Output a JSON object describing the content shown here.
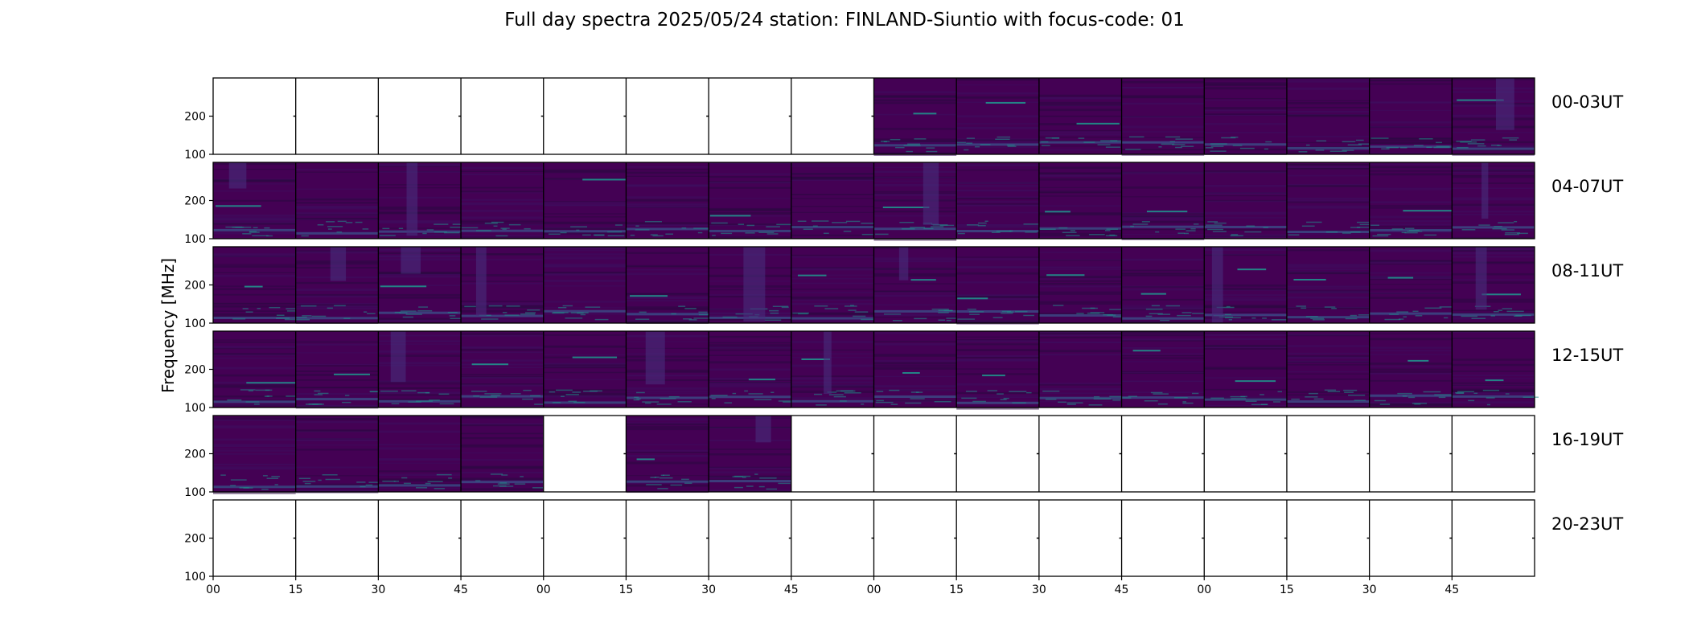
{
  "title": "Full day spectra 2025/05/24 station: FINLAND-Siuntio with focus-code: 01",
  "chart_data": {
    "type": "heatmap",
    "title": "Full day spectra 2025/05/24 station: FINLAND-Siuntio with focus-code: 01",
    "ylabel": "Frequency [MHz]",
    "xlabel": "",
    "x_tick_labels": [
      "00",
      "15",
      "30",
      "45",
      "00",
      "15",
      "30",
      "45",
      "00",
      "15",
      "30",
      "45",
      "00",
      "15",
      "30",
      "45"
    ],
    "y_tick_labels": [
      "100",
      "200"
    ],
    "ylim": [
      100,
      300
    ],
    "colormap": "viridis",
    "rows": [
      {
        "label": "00-03UT",
        "panels": [
          0,
          0,
          0,
          0,
          0,
          0,
          0,
          0,
          1,
          1,
          1,
          1,
          1,
          1,
          1,
          1
        ]
      },
      {
        "label": "04-07UT",
        "panels": [
          1,
          1,
          1,
          1,
          1,
          1,
          1,
          1,
          1,
          1,
          1,
          1,
          1,
          1,
          1,
          1
        ]
      },
      {
        "label": "08-11UT",
        "panels": [
          1,
          1,
          1,
          1,
          1,
          1,
          1,
          1,
          1,
          1,
          1,
          1,
          1,
          1,
          1,
          1
        ]
      },
      {
        "label": "12-15UT",
        "panels": [
          1,
          1,
          1,
          1,
          1,
          1,
          1,
          1,
          1,
          1,
          1,
          1,
          1,
          1,
          1,
          1
        ]
      },
      {
        "label": "16-19UT",
        "panels": [
          1,
          1,
          1,
          1,
          0,
          1,
          1,
          0,
          0,
          0,
          0,
          0,
          0,
          0,
          0,
          0
        ]
      },
      {
        "label": "20-23UT",
        "panels": [
          0,
          0,
          0,
          0,
          0,
          0,
          0,
          0,
          0,
          0,
          0,
          0,
          0,
          0,
          0,
          0
        ]
      }
    ]
  },
  "colors": {
    "background": "#440154",
    "band": "#3b528b",
    "bright": "#21918c",
    "hot": "#5ec962",
    "dark": "#2a0a3f"
  }
}
